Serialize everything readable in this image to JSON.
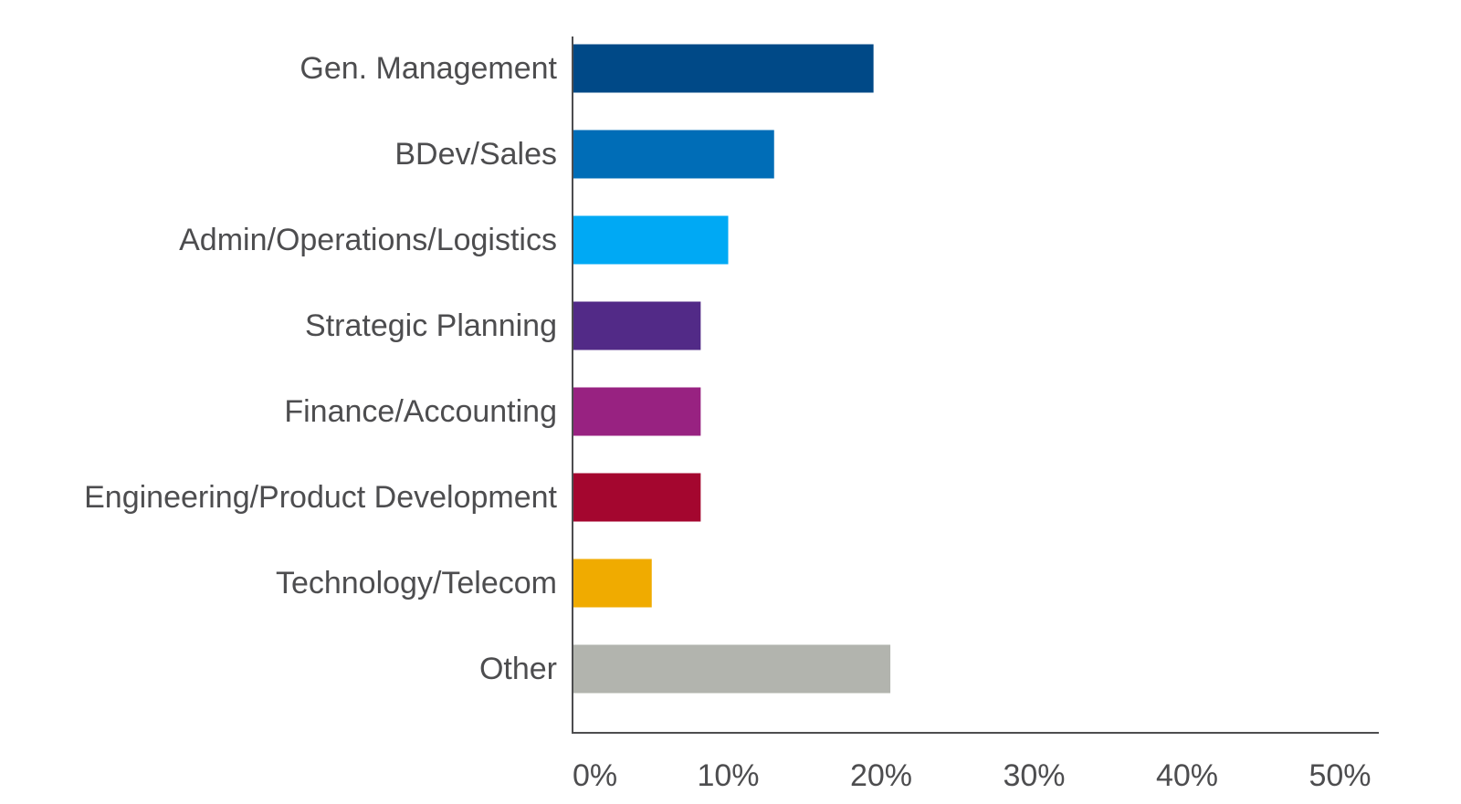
{
  "chart_data": {
    "type": "bar",
    "orientation": "horizontal",
    "title": "",
    "xlabel": "",
    "ylabel": "",
    "categories": [
      "Gen. Management",
      "BDev/Sales",
      "Admin/Operations/Logistics",
      "Strategic Planning",
      "Finance/Accounting",
      "Engineering/Product Development",
      "Technology/Telecom",
      "Other"
    ],
    "values": [
      19.5,
      13,
      10,
      8.2,
      8.2,
      8.2,
      5,
      20.6
    ],
    "colors": [
      "#004987",
      "#006db7",
      "#00a9f4",
      "#522a87",
      "#982281",
      "#a4062f",
      "#f0ab00",
      "#b2b4ae"
    ],
    "xlim": [
      0,
      50
    ],
    "xticks": [
      0,
      10,
      20,
      30,
      40,
      50
    ],
    "xtick_labels": [
      "0%",
      "10%",
      "20%",
      "30%",
      "40%",
      "50%"
    ],
    "grid": false,
    "legend": "none"
  }
}
